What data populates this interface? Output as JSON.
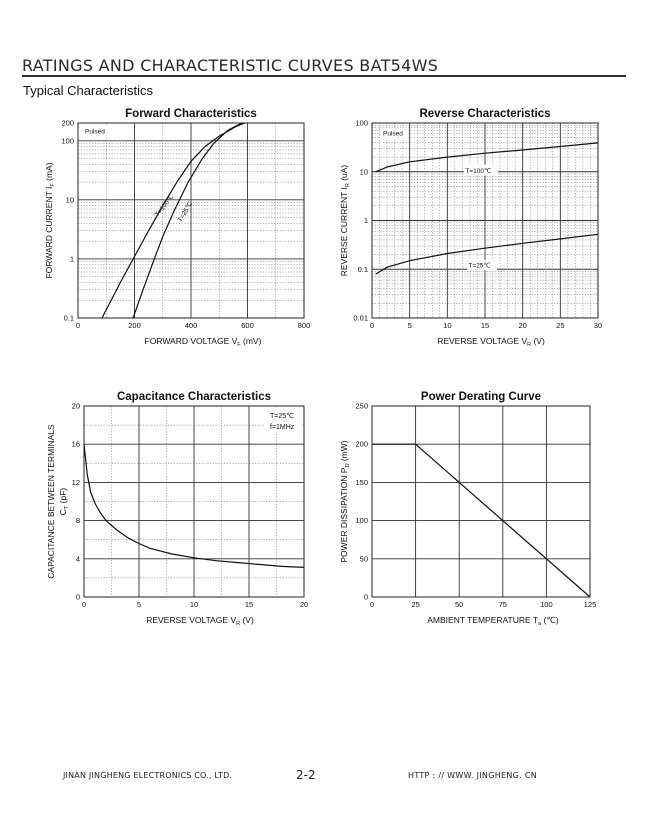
{
  "header": {
    "title": "RATINGS AND CHARACTERISTIC CURVES BAT54WS",
    "section": "Typical Characteristics"
  },
  "footer": {
    "company": "JINAN JINGHENG  ELECTRONICS   CO., LTD.",
    "page": "2-2",
    "url": "HTTP : // WWW. JINGHENG. CN"
  },
  "chart_data": [
    {
      "id": "forward",
      "type": "line",
      "title": "Forward Characteristics",
      "xlabel": "FORWARD VOLTAGE   V",
      "xlabel_sub": "F",
      "xlabel_unit": "(mV)",
      "ylabel": "FORWARD CURRENT   I",
      "ylabel_sub": "F",
      "ylabel_unit": "(mA)",
      "xlim": [
        0,
        800
      ],
      "ylim": [
        0.1,
        200
      ],
      "yscale": "log",
      "x_ticks": [
        "0",
        "200",
        "400",
        "600",
        "800"
      ],
      "y_ticks": [
        "200",
        "100",
        "10",
        "1",
        "0.1"
      ],
      "annotation": "Pulsed",
      "series": [
        {
          "name": "T=100℃",
          "x": [
            85,
            150,
            200,
            250,
            300,
            350,
            400,
            450,
            500,
            560,
            590
          ],
          "y": [
            0.1,
            0.4,
            1.1,
            3,
            8,
            20,
            45,
            80,
            120,
            175,
            200
          ]
        },
        {
          "name": "T=25℃",
          "x": [
            195,
            230,
            270,
            300,
            340,
            390,
            440,
            480,
            530,
            580
          ],
          "y": [
            0.1,
            0.3,
            1.0,
            2.4,
            6.5,
            20,
            50,
            90,
            150,
            200
          ]
        }
      ]
    },
    {
      "id": "reverse",
      "type": "line",
      "title": "Reverse Characteristics",
      "xlabel": "REVERSE VOLTAGE   V",
      "xlabel_sub": "R",
      "xlabel_unit": "(V)",
      "ylabel": "REVERSE CURRENT   I",
      "ylabel_sub": "R",
      "ylabel_unit": "(uA)",
      "xlim": [
        0,
        30
      ],
      "ylim": [
        0.01,
        100
      ],
      "yscale": "log",
      "x_ticks": [
        "0",
        "5",
        "10",
        "15",
        "20",
        "25",
        "30"
      ],
      "y_ticks": [
        "100",
        "10",
        "1",
        "0.1",
        "0.01"
      ],
      "annotation": "Pulsed",
      "series": [
        {
          "name": "T=100℃",
          "x": [
            0.5,
            2,
            5,
            10,
            15,
            20,
            25,
            30
          ],
          "y": [
            10,
            12.5,
            16,
            20,
            24,
            28,
            33,
            39
          ]
        },
        {
          "name": "T=25℃",
          "x": [
            0.5,
            2,
            5,
            10,
            15,
            20,
            25,
            30
          ],
          "y": [
            0.08,
            0.11,
            0.15,
            0.21,
            0.27,
            0.34,
            0.42,
            0.52
          ]
        }
      ]
    },
    {
      "id": "capacitance",
      "type": "line",
      "title": "Capacitance Characteristics",
      "xlabel": "REVERSE VOLTAGE   V",
      "xlabel_sub": "R",
      "xlabel_unit": "(V)",
      "ylabel": "CAPACITANCE BETWEEN TERMINALS",
      "ylabel2": "C",
      "ylabel2_sub": "T",
      "ylabel2_unit": "(pF)",
      "xlim": [
        0,
        20
      ],
      "ylim": [
        0,
        20
      ],
      "yscale": "linear",
      "x_ticks": [
        "0",
        "5",
        "10",
        "15",
        "20"
      ],
      "y_ticks": [
        "20",
        "16",
        "12",
        "8",
        "4",
        "0"
      ],
      "annotation_line1": "T=25℃",
      "annotation_line2": "f=1MHz",
      "series": [
        {
          "name": "",
          "x": [
            0,
            0.3,
            0.6,
            1,
            1.5,
            2,
            3,
            4,
            5,
            6,
            8,
            10,
            12,
            14,
            16,
            18,
            20
          ],
          "y": [
            16,
            12.8,
            11,
            9.8,
            8.8,
            8.0,
            7.0,
            6.2,
            5.6,
            5.1,
            4.5,
            4.1,
            3.8,
            3.6,
            3.4,
            3.2,
            3.1
          ]
        }
      ]
    },
    {
      "id": "derating",
      "type": "line",
      "title": "Power Derating Curve",
      "xlabel": "AMBIENT TEMPERATURE   T",
      "xlabel_sub": "a",
      "xlabel_unit": "(℃)",
      "ylabel": "POWER DISSIPATION   P",
      "ylabel_sub": "D",
      "ylabel_unit": "(mW)",
      "xlim": [
        0,
        125
      ],
      "ylim": [
        0,
        250
      ],
      "yscale": "linear",
      "x_ticks": [
        "0",
        "25",
        "50",
        "75",
        "100",
        "125"
      ],
      "y_ticks": [
        "250",
        "200",
        "150",
        "100",
        "50",
        "0"
      ],
      "series": [
        {
          "name": "",
          "x": [
            0,
            25,
            125
          ],
          "y": [
            200,
            200,
            0
          ]
        }
      ]
    }
  ]
}
